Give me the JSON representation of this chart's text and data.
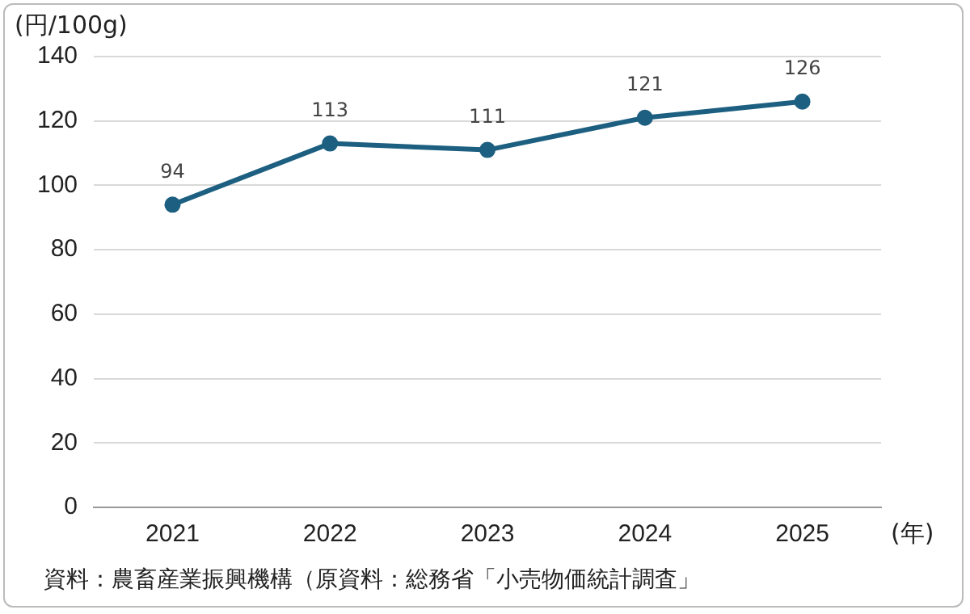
{
  "chart_data": {
    "type": "line",
    "ylabel": "(円/100g)",
    "xlabel": "(年)",
    "categories": [
      "2021",
      "2022",
      "2023",
      "2024",
      "2025"
    ],
    "series": [
      {
        "color": "#1d5f80",
        "values": [
          94,
          113,
          111,
          121,
          126
        ]
      }
    ],
    "ylim": [
      0,
      140
    ],
    "yticks": [
      0,
      20,
      40,
      60,
      80,
      100,
      120,
      140
    ],
    "grid": "y",
    "marker": "circle",
    "line_style": "solid",
    "data_labels": true,
    "legend": false,
    "annotations": [
      "資料：農畜産業振興機構（原資料：総務省「小売物価統計調査」"
    ]
  }
}
